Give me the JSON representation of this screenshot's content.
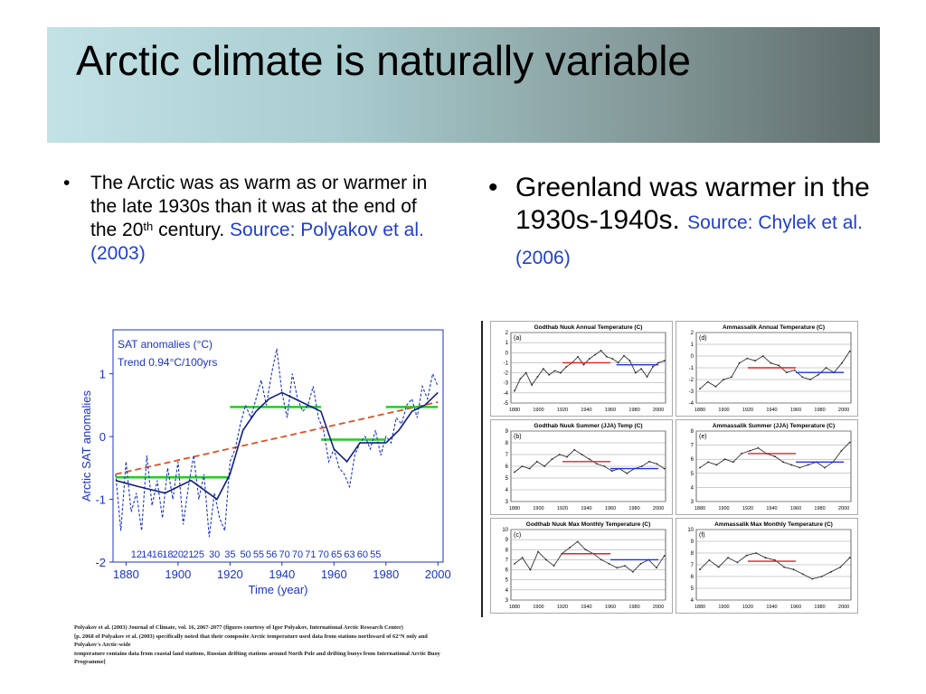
{
  "slide": {
    "title": "Arctic climate is naturally variable",
    "left_bullet": {
      "text_a": "The Arctic was as warm as or warmer in the late 1930s than it was at the end of the 20",
      "sup": "th",
      "text_b": " century. ",
      "source": "Source: Polyakov et al. (2003)"
    },
    "right_bullet": {
      "text": "Greenland was warmer in the 1930s-1940s. ",
      "source": "Source: Chylek et al. (2006)"
    },
    "citation": [
      "Polyakov et al. (2003) Journal of Climate, vol. 16, 2067-2077 (figures courtesy of Igor Polyakov, International Arctic Research Center)",
      "[p. 2068 of Polyakov et al. (2003) specifically noted that their composite Arctic temperature used data from stations northward of 62°N only and Polyakov's Arctic-wide",
      "temperature contains data from coastal land stations, Russian drifting stations around North Pole and drifting buoys from International Arctic Buoy Programme]"
    ]
  },
  "colors": {
    "title_bar_start": "#c3e2e6",
    "title_bar_end": "#5d6b69",
    "source_text": "#1f3fcf",
    "sat_axis": "#1a33c8",
    "trend": "#e05020",
    "period_mean": "#22cc22",
    "red_mean": "#e02020",
    "blue_mean": "#2030e0"
  },
  "chart_data": [
    {
      "type": "line",
      "title": "",
      "legend": [
        "SAT anomalies (°C)",
        "Trend 0.94°C/100yrs"
      ],
      "xlabel": "Time (year)",
      "ylabel": "Arctic SAT anomalies",
      "xlim": [
        1875,
        2002
      ],
      "ylim": [
        -2.0,
        1.7
      ],
      "xticks": [
        1880,
        1900,
        1920,
        1940,
        1960,
        1980,
        2000
      ],
      "yticks": [
        -2,
        -1,
        0,
        1
      ],
      "station_counts": [
        "12",
        "14",
        "16",
        "18",
        "20",
        "21",
        "25",
        "30",
        "35",
        "50",
        "55",
        "56",
        "70",
        "70",
        "71",
        "70",
        "65",
        "63",
        "60",
        "55"
      ],
      "station_count_years": [
        1884,
        1888,
        1892,
        1896,
        1900,
        1904,
        1908,
        1914,
        1920,
        1926,
        1931,
        1936,
        1941,
        1946,
        1951,
        1956,
        1961,
        1966,
        1971,
        1976
      ],
      "annual_anomalies": [
        {
          "x": 1876,
          "y": -0.6
        },
        {
          "x": 1878,
          "y": -1.5
        },
        {
          "x": 1880,
          "y": -0.4
        },
        {
          "x": 1882,
          "y": -1.2
        },
        {
          "x": 1884,
          "y": -0.9
        },
        {
          "x": 1886,
          "y": -1.5
        },
        {
          "x": 1888,
          "y": -0.3
        },
        {
          "x": 1890,
          "y": -1.1
        },
        {
          "x": 1892,
          "y": -0.7
        },
        {
          "x": 1894,
          "y": -1.3
        },
        {
          "x": 1896,
          "y": -0.5
        },
        {
          "x": 1898,
          "y": -1.0
        },
        {
          "x": 1900,
          "y": -0.4
        },
        {
          "x": 1902,
          "y": -1.4
        },
        {
          "x": 1904,
          "y": -0.8
        },
        {
          "x": 1906,
          "y": -0.3
        },
        {
          "x": 1908,
          "y": -1.0
        },
        {
          "x": 1910,
          "y": -0.6
        },
        {
          "x": 1912,
          "y": -1.6
        },
        {
          "x": 1914,
          "y": -0.9
        },
        {
          "x": 1916,
          "y": -1.3
        },
        {
          "x": 1918,
          "y": -1.5
        },
        {
          "x": 1920,
          "y": -0.4
        },
        {
          "x": 1922,
          "y": -0.2
        },
        {
          "x": 1924,
          "y": 0.2
        },
        {
          "x": 1926,
          "y": 0.5
        },
        {
          "x": 1928,
          "y": 0.3
        },
        {
          "x": 1930,
          "y": 0.6
        },
        {
          "x": 1932,
          "y": 0.9
        },
        {
          "x": 1934,
          "y": 0.5
        },
        {
          "x": 1936,
          "y": 1.0
        },
        {
          "x": 1938,
          "y": 1.4
        },
        {
          "x": 1940,
          "y": 0.7
        },
        {
          "x": 1942,
          "y": 0.3
        },
        {
          "x": 1944,
          "y": 1.0
        },
        {
          "x": 1946,
          "y": 0.6
        },
        {
          "x": 1948,
          "y": 0.4
        },
        {
          "x": 1950,
          "y": 0.5
        },
        {
          "x": 1952,
          "y": 0.8
        },
        {
          "x": 1954,
          "y": 0.3
        },
        {
          "x": 1956,
          "y": 0.1
        },
        {
          "x": 1958,
          "y": -0.4
        },
        {
          "x": 1960,
          "y": -0.2
        },
        {
          "x": 1962,
          "y": -0.5
        },
        {
          "x": 1964,
          "y": -0.6
        },
        {
          "x": 1966,
          "y": -0.8
        },
        {
          "x": 1968,
          "y": -0.3
        },
        {
          "x": 1970,
          "y": -0.1
        },
        {
          "x": 1972,
          "y": 0.0
        },
        {
          "x": 1974,
          "y": -0.2
        },
        {
          "x": 1976,
          "y": 0.1
        },
        {
          "x": 1978,
          "y": -0.3
        },
        {
          "x": 1980,
          "y": 0.0
        },
        {
          "x": 1982,
          "y": -0.1
        },
        {
          "x": 1984,
          "y": 0.3
        },
        {
          "x": 1986,
          "y": 0.2
        },
        {
          "x": 1988,
          "y": 0.5
        },
        {
          "x": 1990,
          "y": 0.6
        },
        {
          "x": 1992,
          "y": 0.3
        },
        {
          "x": 1994,
          "y": 0.8
        },
        {
          "x": 1996,
          "y": 0.6
        },
        {
          "x": 1998,
          "y": 1.0
        },
        {
          "x": 2000,
          "y": 0.8
        }
      ],
      "smoothed": [
        {
          "x": 1876,
          "y": -0.7
        },
        {
          "x": 1885,
          "y": -0.8
        },
        {
          "x": 1895,
          "y": -0.9
        },
        {
          "x": 1905,
          "y": -0.7
        },
        {
          "x": 1915,
          "y": -1.0
        },
        {
          "x": 1920,
          "y": -0.6
        },
        {
          "x": 1925,
          "y": 0.1
        },
        {
          "x": 1930,
          "y": 0.4
        },
        {
          "x": 1935,
          "y": 0.6
        },
        {
          "x": 1940,
          "y": 0.7
        },
        {
          "x": 1945,
          "y": 0.6
        },
        {
          "x": 1950,
          "y": 0.5
        },
        {
          "x": 1955,
          "y": 0.4
        },
        {
          "x": 1960,
          "y": -0.2
        },
        {
          "x": 1965,
          "y": -0.4
        },
        {
          "x": 1970,
          "y": -0.1
        },
        {
          "x": 1975,
          "y": -0.1
        },
        {
          "x": 1980,
          "y": -0.1
        },
        {
          "x": 1985,
          "y": 0.1
        },
        {
          "x": 1990,
          "y": 0.4
        },
        {
          "x": 1995,
          "y": 0.5
        },
        {
          "x": 2000,
          "y": 0.7
        }
      ],
      "trend_line": [
        {
          "x": 1876,
          "y": -0.6
        },
        {
          "x": 2000,
          "y": 0.55
        }
      ],
      "period_means": [
        {
          "x0": 1876,
          "x1": 1920,
          "y": -0.65
        },
        {
          "x0": 1920,
          "x1": 1955,
          "y": 0.47
        },
        {
          "x0": 1955,
          "x1": 1980,
          "y": -0.05
        },
        {
          "x0": 1980,
          "x1": 2000,
          "y": 0.47
        }
      ]
    },
    {
      "type": "line",
      "panel": "(a)",
      "title": "Godthab Nuuk Annual Temperature (C)",
      "xticks": [
        1880,
        1900,
        1920,
        1940,
        1960,
        1980,
        2000
      ],
      "yticks": [
        -5,
        -4,
        -3,
        -2,
        -1,
        0,
        1,
        2
      ],
      "ylim": [
        -5,
        2
      ],
      "series": [
        {
          "values": [
            -3.8,
            -2.6,
            -2.0,
            -3.2,
            -2.4,
            -1.6,
            -2.2,
            -1.8,
            -2.0,
            -1.4,
            -1.0,
            -0.4,
            -1.2,
            -0.6,
            -0.2,
            0.2,
            -0.4,
            -0.6,
            -1.0,
            -0.3,
            -0.8,
            -2.0,
            -1.6,
            -2.4,
            -1.4,
            -1.0,
            -0.8
          ]
        }
      ],
      "mean_lines": [
        {
          "x0": 1920,
          "x1": 1960,
          "y": -1.0,
          "color": "red"
        },
        {
          "x0": 1965,
          "x1": 2000,
          "y": -1.2,
          "color": "blue"
        }
      ]
    },
    {
      "type": "line",
      "panel": "(d)",
      "title": "Ammassalik Annual Temperature (C)",
      "xticks": [
        1880,
        1900,
        1920,
        1940,
        1960,
        1980,
        2000
      ],
      "yticks": [
        -4,
        -3,
        -2,
        -1,
        0,
        1,
        2
      ],
      "ylim": [
        -4,
        2
      ],
      "series": [
        {
          "values": [
            -2.8,
            -2.2,
            -2.6,
            -2.0,
            -1.8,
            -0.6,
            -0.2,
            -0.4,
            0.0,
            -0.6,
            -0.8,
            -1.4,
            -1.2,
            -1.8,
            -2.0,
            -1.6,
            -1.0,
            -1.4,
            -0.6,
            0.4
          ]
        }
      ],
      "mean_lines": [
        {
          "x0": 1920,
          "x1": 1960,
          "y": -1.0,
          "color": "red"
        },
        {
          "x0": 1960,
          "x1": 2000,
          "y": -1.4,
          "color": "blue"
        }
      ]
    },
    {
      "type": "line",
      "panel": "(b)",
      "title": "Godthab Nuuk Summer (JJA) Temp (C)",
      "xticks": [
        1880,
        1900,
        1920,
        1940,
        1960,
        1980,
        2000
      ],
      "yticks": [
        3,
        4,
        5,
        6,
        7,
        8,
        9
      ],
      "ylim": [
        3,
        9
      ],
      "series": [
        {
          "values": [
            5.5,
            6.0,
            5.8,
            6.4,
            6.0,
            6.6,
            7.0,
            6.8,
            7.4,
            7.0,
            6.6,
            6.2,
            6.0,
            5.6,
            5.8,
            5.4,
            5.8,
            6.0,
            6.4,
            6.2,
            5.8
          ]
        }
      ],
      "mean_lines": [
        {
          "x0": 1920,
          "x1": 1960,
          "y": 6.4,
          "color": "red"
        },
        {
          "x0": 1960,
          "x1": 2000,
          "y": 5.8,
          "color": "blue"
        }
      ]
    },
    {
      "type": "line",
      "panel": "(e)",
      "title": "Ammassalik Summer (JJA) Temperature (C)",
      "xticks": [
        1880,
        1900,
        1920,
        1940,
        1960,
        1980,
        2000
      ],
      "yticks": [
        3,
        4,
        5,
        6,
        7,
        8
      ],
      "ylim": [
        3,
        8
      ],
      "series": [
        {
          "values": [
            5.4,
            5.8,
            5.6,
            6.0,
            5.8,
            6.4,
            6.6,
            6.8,
            6.4,
            6.2,
            5.8,
            5.6,
            5.4,
            5.6,
            5.8,
            5.4,
            5.8,
            6.6,
            7.2
          ]
        }
      ],
      "mean_lines": [
        {
          "x0": 1920,
          "x1": 1960,
          "y": 6.4,
          "color": "red"
        },
        {
          "x0": 1960,
          "x1": 2000,
          "y": 5.8,
          "color": "blue"
        }
      ]
    },
    {
      "type": "line",
      "panel": "(c)",
      "title": "Godthab Nuuk Max Monthly Temperature (C)",
      "xticks": [
        1880,
        1900,
        1920,
        1940,
        1960,
        1980,
        2000
      ],
      "yticks": [
        3,
        4,
        5,
        6,
        7,
        8,
        9,
        10
      ],
      "ylim": [
        3,
        10
      ],
      "series": [
        {
          "values": [
            6.6,
            7.2,
            6.0,
            7.8,
            7.0,
            6.4,
            7.6,
            8.2,
            8.8,
            8.0,
            7.6,
            7.0,
            6.6,
            6.2,
            6.4,
            5.8,
            6.6,
            7.0,
            6.2,
            7.4
          ]
        }
      ],
      "mean_lines": [
        {
          "x0": 1920,
          "x1": 1960,
          "y": 7.6,
          "color": "red"
        },
        {
          "x0": 1960,
          "x1": 2000,
          "y": 7.0,
          "color": "blue"
        }
      ]
    },
    {
      "type": "line",
      "panel": "(f)",
      "title": "Ammassalik Max Monthly Temperature (C)",
      "xticks": [
        1880,
        1900,
        1920,
        1940,
        1960,
        1980,
        2000
      ],
      "yticks": [
        4,
        5,
        6,
        7,
        8,
        9,
        10
      ],
      "ylim": [
        4,
        10
      ],
      "series": [
        {
          "values": [
            6.6,
            7.4,
            6.8,
            7.6,
            7.2,
            7.8,
            8.0,
            7.6,
            7.4,
            6.8,
            6.6,
            6.2,
            5.8,
            6.0,
            6.4,
            6.8,
            7.6
          ]
        }
      ],
      "mean_lines": [
        {
          "x0": 1920,
          "x1": 1960,
          "y": 7.3,
          "color": "red"
        }
      ]
    }
  ]
}
